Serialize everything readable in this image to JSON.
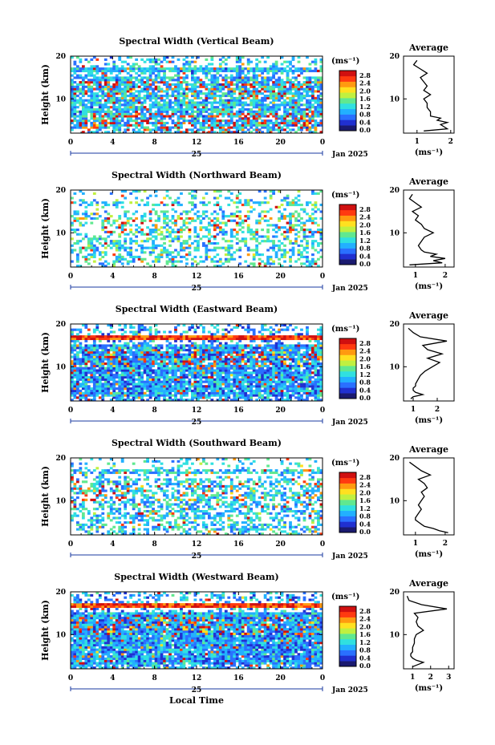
{
  "figure": {
    "xlabel": "Local Time",
    "date_label": "Jan 2025",
    "day_label": "25",
    "colorbar_unit": "(ms⁻¹)",
    "colorbar_ticks": [
      "0.0",
      "0.4",
      "0.8",
      "1.2",
      "1.6",
      "2.0",
      "2.4",
      "2.8"
    ],
    "colorbar_colors": [
      "#1a1a70",
      "#2030d0",
      "#2a70ff",
      "#22b0ff",
      "#30e0e0",
      "#60e890",
      "#c0f040",
      "#ffe020",
      "#ff9a10",
      "#ff3a10",
      "#d01010"
    ],
    "avg_title": "Average",
    "avg_xlabel": "(ms⁻¹)"
  },
  "chart_data": [
    {
      "type": "heatmap",
      "title": "Spectral Width (Vertical Beam)",
      "ylabel": "Height (km)",
      "x_ticks": [
        "0",
        "4",
        "8",
        "12",
        "16",
        "20",
        "0"
      ],
      "xlim": [
        0,
        24
      ],
      "y_ticks": [
        "20",
        "10"
      ],
      "ylim": [
        2,
        20
      ],
      "avg": {
        "x_ticks": [
          "1",
          "2"
        ],
        "xlim": [
          0.6,
          2.1
        ],
        "heights": [
          2.5,
          3,
          3.5,
          4,
          4.5,
          5,
          5.5,
          6,
          7,
          8,
          9,
          10,
          11,
          12,
          13,
          14,
          15,
          16,
          17,
          18,
          19
        ],
        "values": [
          1.2,
          1.9,
          1.8,
          1.7,
          1.9,
          1.6,
          1.7,
          1.4,
          1.4,
          1.3,
          1.3,
          1.2,
          1.4,
          1.2,
          1.3,
          1.2,
          1.1,
          1.3,
          1.1,
          0.9,
          1.0
        ]
      }
    },
    {
      "type": "heatmap",
      "title": "Spectral Width (Northward Beam)",
      "ylabel": "Height (km)",
      "x_ticks": [
        "0",
        "4",
        "8",
        "12",
        "16",
        "20",
        "0"
      ],
      "xlim": [
        0,
        24
      ],
      "y_ticks": [
        "20",
        "10"
      ],
      "ylim": [
        2,
        20
      ],
      "avg": {
        "x_ticks": [
          "1",
          "2"
        ],
        "xlim": [
          0.6,
          2.3
        ],
        "heights": [
          2.5,
          3,
          3.5,
          4,
          4.5,
          5,
          5.5,
          6,
          7,
          8,
          9,
          10,
          11,
          12,
          13,
          14,
          15,
          16,
          17,
          18,
          19
        ],
        "values": [
          0.8,
          1.9,
          1.6,
          2.0,
          1.5,
          1.7,
          1.3,
          1.2,
          1.1,
          1.2,
          1.3,
          1.6,
          1.3,
          1.2,
          1.0,
          1.1,
          0.9,
          1.2,
          1.0,
          0.8,
          0.9
        ]
      }
    },
    {
      "type": "heatmap",
      "title": "Spectral Width (Eastward Beam)",
      "ylabel": "Height (km)",
      "x_ticks": [
        "0",
        "4",
        "8",
        "12",
        "16",
        "20",
        "0"
      ],
      "xlim": [
        0,
        24
      ],
      "y_ticks": [
        "20",
        "10"
      ],
      "ylim": [
        2,
        20
      ],
      "avg": {
        "x_ticks": [
          "1",
          "2"
        ],
        "xlim": [
          0.6,
          2.7
        ],
        "heights": [
          2.5,
          3,
          3.5,
          4,
          4.5,
          5,
          5.5,
          6,
          7,
          8,
          9,
          10,
          11,
          12,
          13,
          14,
          15,
          16,
          17,
          18,
          19
        ],
        "values": [
          0.9,
          1.0,
          1.4,
          1.1,
          1.0,
          1.0,
          1.1,
          1.1,
          1.2,
          1.3,
          1.5,
          1.8,
          2.1,
          1.6,
          2.2,
          1.6,
          1.4,
          2.4,
          1.3,
          1.0,
          0.8
        ]
      }
    },
    {
      "type": "heatmap",
      "title": "Spectral Width (Southward Beam)",
      "ylabel": "Height (km)",
      "x_ticks": [
        "0",
        "4",
        "8",
        "12",
        "16",
        "20",
        "0"
      ],
      "xlim": [
        0,
        24
      ],
      "y_ticks": [
        "20",
        "10"
      ],
      "ylim": [
        2,
        20
      ],
      "avg": {
        "x_ticks": [
          "1",
          "2"
        ],
        "xlim": [
          0.6,
          2.3
        ],
        "heights": [
          2.5,
          3,
          3.5,
          4,
          4.5,
          5,
          5.5,
          6,
          7,
          8,
          9,
          10,
          11,
          12,
          13,
          14,
          15,
          16,
          17,
          18,
          19
        ],
        "values": [
          2.1,
          1.8,
          1.6,
          1.3,
          1.2,
          1.1,
          1.0,
          1.0,
          1.1,
          1.2,
          1.1,
          1.2,
          1.3,
          1.2,
          1.4,
          1.3,
          1.1,
          1.5,
          1.2,
          1.0,
          0.8
        ]
      }
    },
    {
      "type": "heatmap",
      "title": "Spectral Width (Westward Beam)",
      "ylabel": "Height (km)",
      "x_ticks": [
        "0",
        "4",
        "8",
        "12",
        "16",
        "20",
        "0"
      ],
      "xlim": [
        0,
        24
      ],
      "y_ticks": [
        "20",
        "10"
      ],
      "ylim": [
        2,
        20
      ],
      "avg": {
        "x_ticks": [
          "1",
          "2",
          "3"
        ],
        "xlim": [
          0.5,
          3.3
        ],
        "heights": [
          2.5,
          3,
          3.5,
          4,
          4.5,
          5,
          5.5,
          6,
          7,
          8,
          9,
          10,
          11,
          12,
          13,
          14,
          15,
          16,
          17,
          18,
          19
        ],
        "values": [
          1.0,
          1.3,
          1.6,
          1.2,
          1.0,
          0.9,
          0.9,
          1.0,
          1.0,
          1.1,
          1.1,
          1.2,
          1.6,
          1.3,
          1.2,
          1.3,
          1.1,
          2.9,
          1.5,
          0.8,
          0.7
        ]
      }
    }
  ]
}
